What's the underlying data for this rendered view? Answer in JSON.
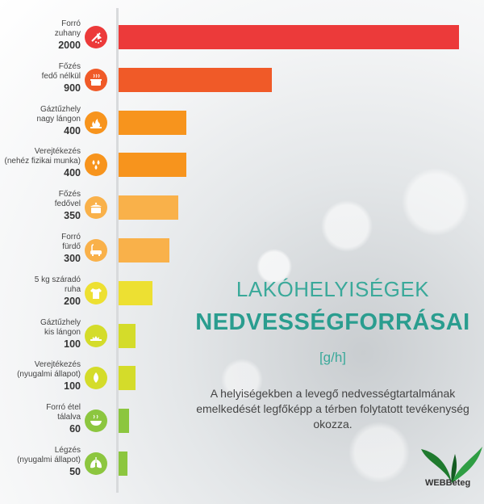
{
  "chart_data": {
    "type": "bar",
    "orientation": "horizontal",
    "title": "LAKÓHELYISÉGEK",
    "subtitle": "NEDVESSÉGFORRÁSAI",
    "unit": "[g/h]",
    "categories": [
      {
        "name": [
          "Forró",
          "zuhany"
        ],
        "value": 2000,
        "color": "#ec3a3a",
        "icon": "shower-icon"
      },
      {
        "name": [
          "Főzés",
          "fedő nélkül"
        ],
        "value": 900,
        "color": "#f05a28",
        "icon": "pot-steam-icon"
      },
      {
        "name": [
          "Gáztűzhely",
          "nagy lángon"
        ],
        "value": 400,
        "color": "#f7941d",
        "icon": "gas-flame-icon"
      },
      {
        "name": [
          "Verejtékezés",
          "(nehéz fizikai munka)"
        ],
        "value": 400,
        "color": "#f7941d",
        "icon": "drops-icon"
      },
      {
        "name": [
          "Főzés",
          "fedővel"
        ],
        "value": 350,
        "color": "#f9b14a",
        "icon": "pot-lid-icon"
      },
      {
        "name": [
          "Forró",
          "fürdő"
        ],
        "value": 300,
        "color": "#f9b14a",
        "icon": "bathtub-icon"
      },
      {
        "name": [
          "5 kg száradó",
          "ruha"
        ],
        "value": 200,
        "color": "#ede032",
        "icon": "tshirt-icon"
      },
      {
        "name": [
          "Gáztűzhely",
          "kis lángon"
        ],
        "value": 100,
        "color": "#d4dc2a",
        "icon": "small-flame-icon"
      },
      {
        "name": [
          "Verejtékezés",
          "(nyugalmi állapot)"
        ],
        "value": 100,
        "color": "#d4dc2a",
        "icon": "drop-icon"
      },
      {
        "name": [
          "Forró étel",
          "tálalva"
        ],
        "value": 60,
        "color": "#8cc63f",
        "icon": "bowl-icon"
      },
      {
        "name": [
          "Légzés",
          "(nyugalmi állapot)"
        ],
        "value": 50,
        "color": "#8cc63f",
        "icon": "lungs-icon"
      }
    ],
    "xlim": [
      0,
      2000
    ]
  },
  "description": "A helyiségekben a levegő nedvességtartalmának emelkedését legfőképp a térben folytatott tevékenység okozza.",
  "logo": {
    "text": "WEBBeteg",
    "accent": "#2a9d3c"
  }
}
